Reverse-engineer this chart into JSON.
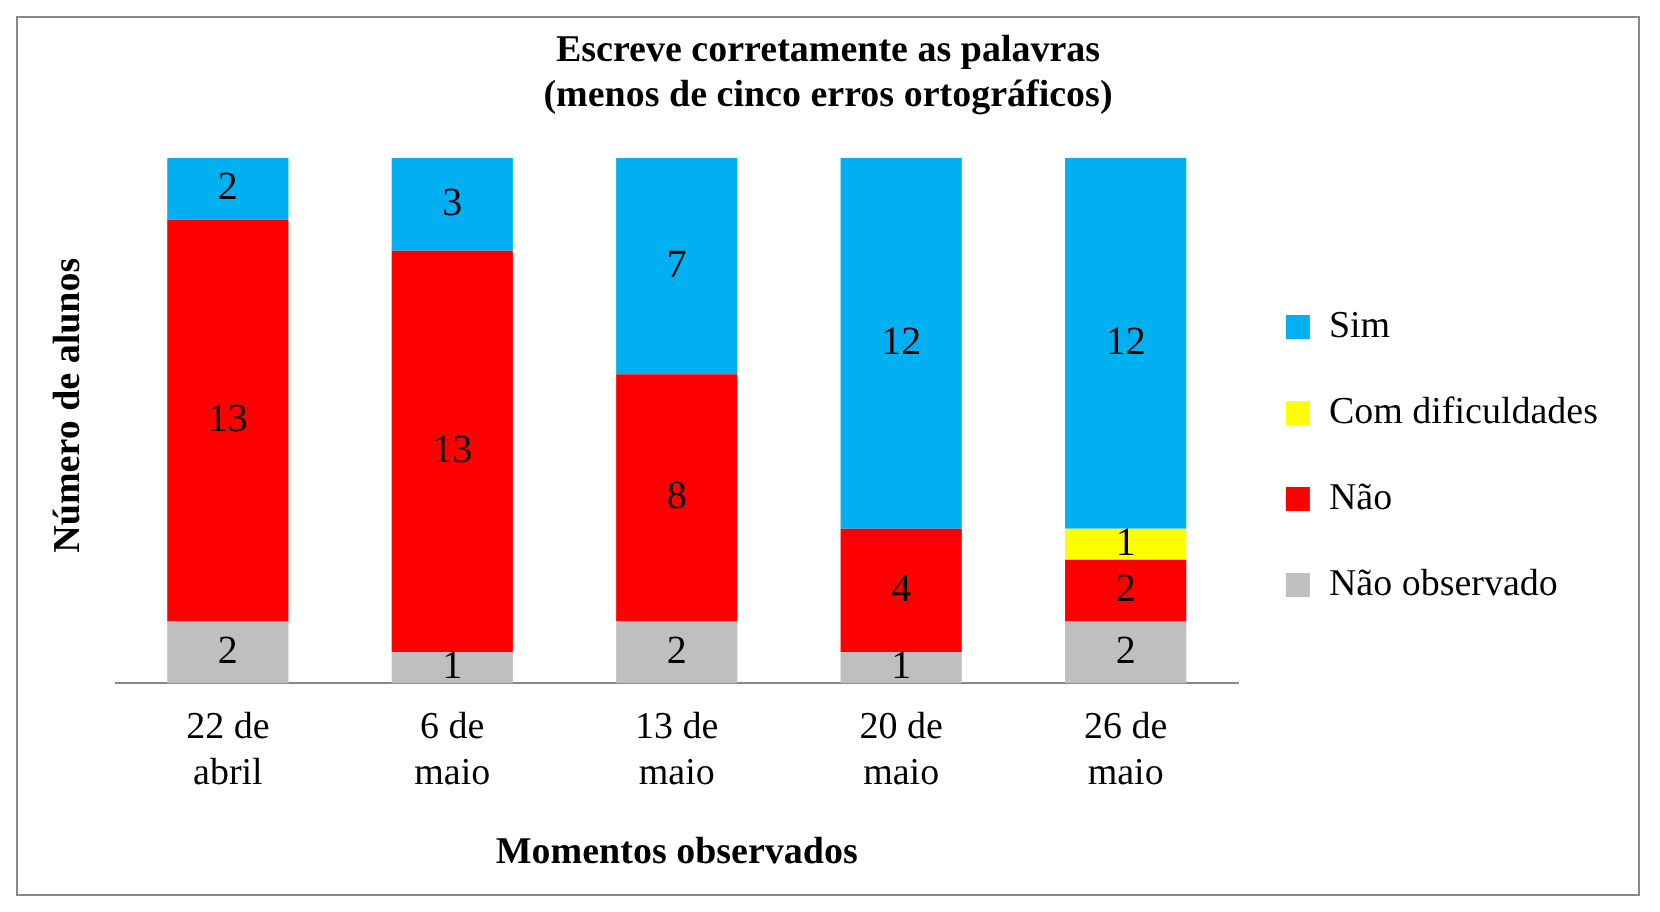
{
  "chart_data": {
    "type": "bar",
    "stacked": true,
    "title": "Escreve corretamente as palavras\n(menos de cinco erros ortográficos)",
    "xlabel": "Momentos observados",
    "ylabel": "Número de alunos",
    "categories": [
      "22 de abril",
      "6 de maio",
      "13 de maio",
      "20 de maio",
      "26 de maio"
    ],
    "series": [
      {
        "name": "Não observado",
        "color": "#bfbfbf",
        "values": [
          2,
          1,
          2,
          1,
          2
        ]
      },
      {
        "name": "Não",
        "color": "#ff0000",
        "values": [
          13,
          13,
          8,
          4,
          2
        ]
      },
      {
        "name": "Com dificuldades",
        "color": "#ffff00",
        "values": [
          null,
          null,
          null,
          null,
          1
        ]
      },
      {
        "name": "Sim",
        "color": "#00b0f0",
        "values": [
          2,
          3,
          7,
          12,
          12
        ]
      }
    ],
    "data_labels": true,
    "legend": "right",
    "grid": false,
    "tick_labels": "x"
  }
}
